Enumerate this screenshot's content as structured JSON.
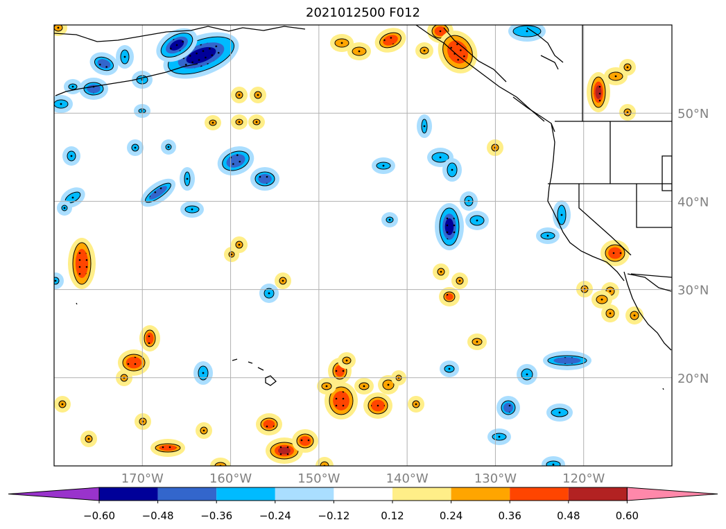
{
  "title": "2021012500 F012",
  "map": {
    "projection": "cylindrical",
    "lon_range": [
      -180,
      -110
    ],
    "lat_range": [
      10,
      60
    ],
    "gridlines": true,
    "lat_labels": [
      {
        "lat": 50,
        "text": "50°N"
      },
      {
        "lat": 40,
        "text": "40°N"
      },
      {
        "lat": 30,
        "text": "30°N"
      },
      {
        "lat": 20,
        "text": "20°N"
      }
    ],
    "lon_labels": [
      {
        "lon": -170,
        "text": "170°W"
      },
      {
        "lon": -160,
        "text": "160°W"
      },
      {
        "lon": -150,
        "text": "150°W"
      },
      {
        "lon": -140,
        "text": "140°W"
      },
      {
        "lon": -130,
        "text": "130°W"
      },
      {
        "lon": -120,
        "text": "120°W"
      }
    ]
  },
  "colorbar": {
    "levels": [
      "−0.60",
      "−0.48",
      "−0.36",
      "−0.24",
      "−0.12",
      "0.12",
      "0.24",
      "0.36",
      "0.48",
      "0.60"
    ],
    "colors": [
      "#9933cc",
      "#000099",
      "#3366cc",
      "#00bbff",
      "#aadeff",
      "#ffffff",
      "#ffee88",
      "#ffa500",
      "#ff4500",
      "#b22222",
      "#ff88aa"
    ],
    "extend": "both"
  },
  "colors": {
    "grid": "#b0b0b0",
    "coast": "#000000",
    "labels": "#808080"
  }
}
